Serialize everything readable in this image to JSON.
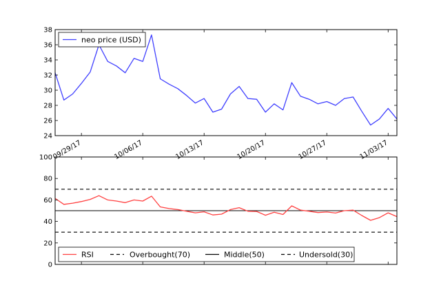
{
  "chart_data": [
    {
      "type": "line",
      "x": [
        "09/26/17",
        "09/27/17",
        "09/28/17",
        "09/29/17",
        "09/30/17",
        "10/01/17",
        "10/02/17",
        "10/03/17",
        "10/04/17",
        "10/05/17",
        "10/06/17",
        "10/07/17",
        "10/08/17",
        "10/09/17",
        "10/10/17",
        "10/11/17",
        "10/12/17",
        "10/13/17",
        "10/14/17",
        "10/15/17",
        "10/16/17",
        "10/17/17",
        "10/18/17",
        "10/19/17",
        "10/20/17",
        "10/21/17",
        "10/22/17",
        "10/23/17",
        "10/24/17",
        "10/25/17",
        "10/26/17",
        "10/27/17",
        "10/28/17",
        "10/29/17",
        "10/30/17",
        "10/31/17",
        "11/01/17",
        "11/02/17",
        "11/03/17",
        "11/04/17"
      ],
      "series": [
        {
          "name": "neo price (USD)",
          "color": "#3f3fff",
          "values": [
            32.3,
            28.7,
            29.5,
            30.9,
            32.4,
            36.0,
            33.8,
            33.2,
            32.3,
            34.2,
            33.8,
            37.3,
            31.5,
            30.8,
            30.2,
            29.3,
            28.3,
            28.9,
            27.1,
            27.5,
            29.5,
            30.5,
            28.9,
            28.8,
            27.1,
            28.2,
            27.4,
            31.0,
            29.2,
            28.8,
            28.2,
            28.5,
            28.0,
            28.9,
            29.1,
            27.2,
            25.4,
            26.2,
            27.6,
            26.2
          ]
        }
      ],
      "xticks": [
        "09/29/17",
        "10/06/17",
        "10/13/17",
        "10/20/17",
        "10/27/17",
        "11/03/17"
      ],
      "yticks": [
        "24",
        "26",
        "28",
        "30",
        "32",
        "34",
        "36",
        "38"
      ],
      "ylim": [
        24,
        38
      ],
      "legend_position": "top-left"
    },
    {
      "type": "line",
      "x": [
        "09/26/17",
        "09/27/17",
        "09/28/17",
        "09/29/17",
        "09/30/17",
        "10/01/17",
        "10/02/17",
        "10/03/17",
        "10/04/17",
        "10/05/17",
        "10/06/17",
        "10/07/17",
        "10/08/17",
        "10/09/17",
        "10/10/17",
        "10/11/17",
        "10/12/17",
        "10/13/17",
        "10/14/17",
        "10/15/17",
        "10/16/17",
        "10/17/17",
        "10/18/17",
        "10/19/17",
        "10/20/17",
        "10/21/17",
        "10/22/17",
        "10/23/17",
        "10/24/17",
        "10/25/17",
        "10/26/17",
        "10/27/17",
        "10/28/17",
        "10/29/17",
        "10/30/17",
        "10/31/17",
        "11/01/17",
        "11/02/17",
        "11/03/17",
        "11/04/17"
      ],
      "series": [
        {
          "name": "RSI",
          "color": "#ff3f3f",
          "values": [
            61.5,
            55.9,
            57.0,
            58.5,
            60.5,
            64.0,
            60.0,
            59.0,
            57.5,
            60.0,
            59.0,
            63.5,
            53.5,
            52.0,
            51.0,
            49.5,
            48.0,
            49.0,
            46.0,
            46.8,
            51.0,
            52.8,
            49.5,
            49.3,
            45.8,
            48.5,
            46.5,
            54.5,
            50.5,
            49.5,
            48.3,
            48.8,
            47.8,
            50.0,
            50.5,
            45.5,
            41.0,
            43.5,
            48.0,
            44.5
          ]
        }
      ],
      "reference_lines": [
        {
          "name": "Overbought(70)",
          "value": 70,
          "style": "dashed",
          "color": "#000000"
        },
        {
          "name": "Middle(50)",
          "value": 50,
          "style": "solid",
          "color": "#000000"
        },
        {
          "name": "Undersold(30)",
          "value": 30,
          "style": "dashed",
          "color": "#000000"
        }
      ],
      "yticks": [
        "0",
        "20",
        "40",
        "60",
        "80",
        "100"
      ],
      "ylim": [
        0,
        100
      ],
      "legend_position": "bottom"
    }
  ]
}
